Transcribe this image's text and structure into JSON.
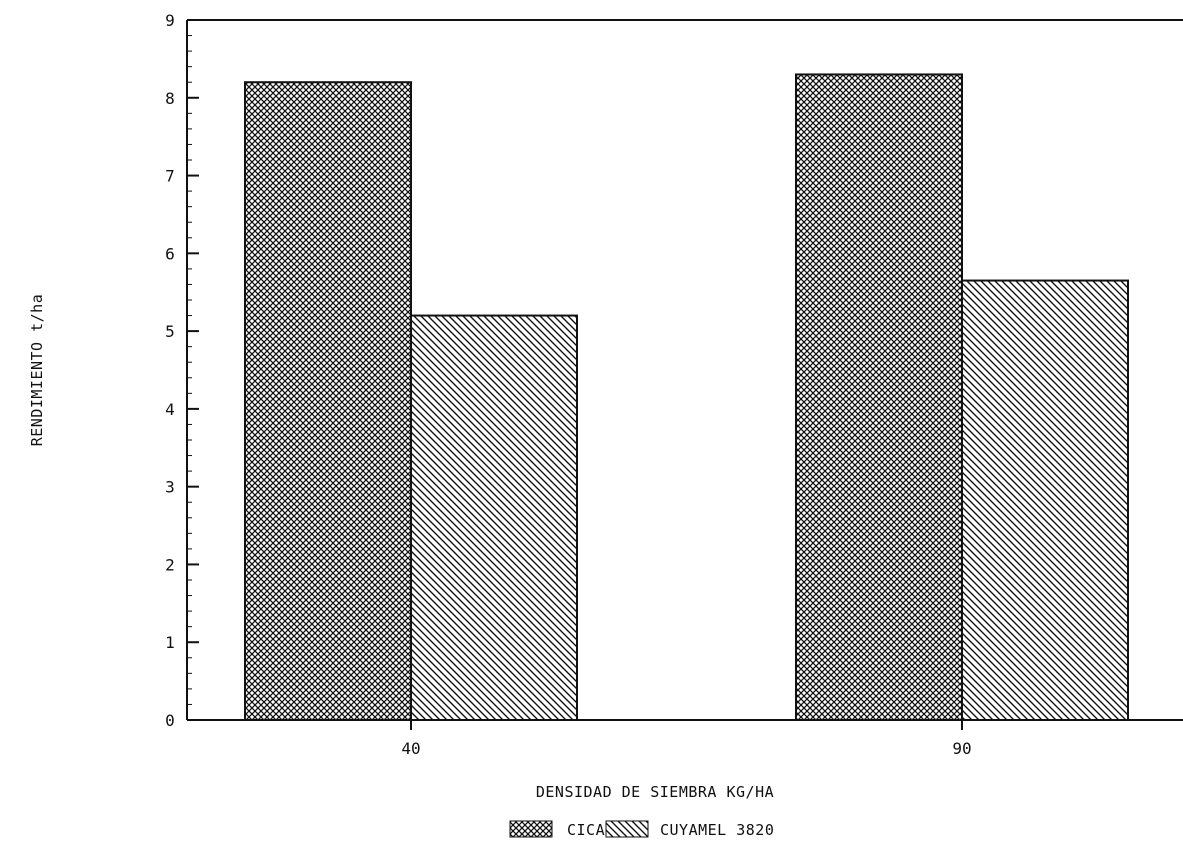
{
  "chart_data": {
    "type": "bar",
    "title": "",
    "xlabel": "DENSIDAD DE SIEMBRA KG/HA",
    "ylabel": "RENDIMIENTO t/ha",
    "categories": [
      "40",
      "90"
    ],
    "series": [
      {
        "name": "CICA 8",
        "values": [
          8.2,
          8.3
        ],
        "pattern": "crosshatch"
      },
      {
        "name": "CUYAMEL 3820",
        "values": [
          5.2,
          5.65
        ],
        "pattern": "diagonal"
      }
    ],
    "ylim": [
      0,
      9
    ],
    "yticks": [
      "0",
      "1",
      "2",
      "3",
      "4",
      "5",
      "6",
      "7",
      "8",
      "9"
    ],
    "legend_position": "bottom",
    "grid": false,
    "colors": {
      "ink": "#111111",
      "background": "#ffffff"
    }
  }
}
